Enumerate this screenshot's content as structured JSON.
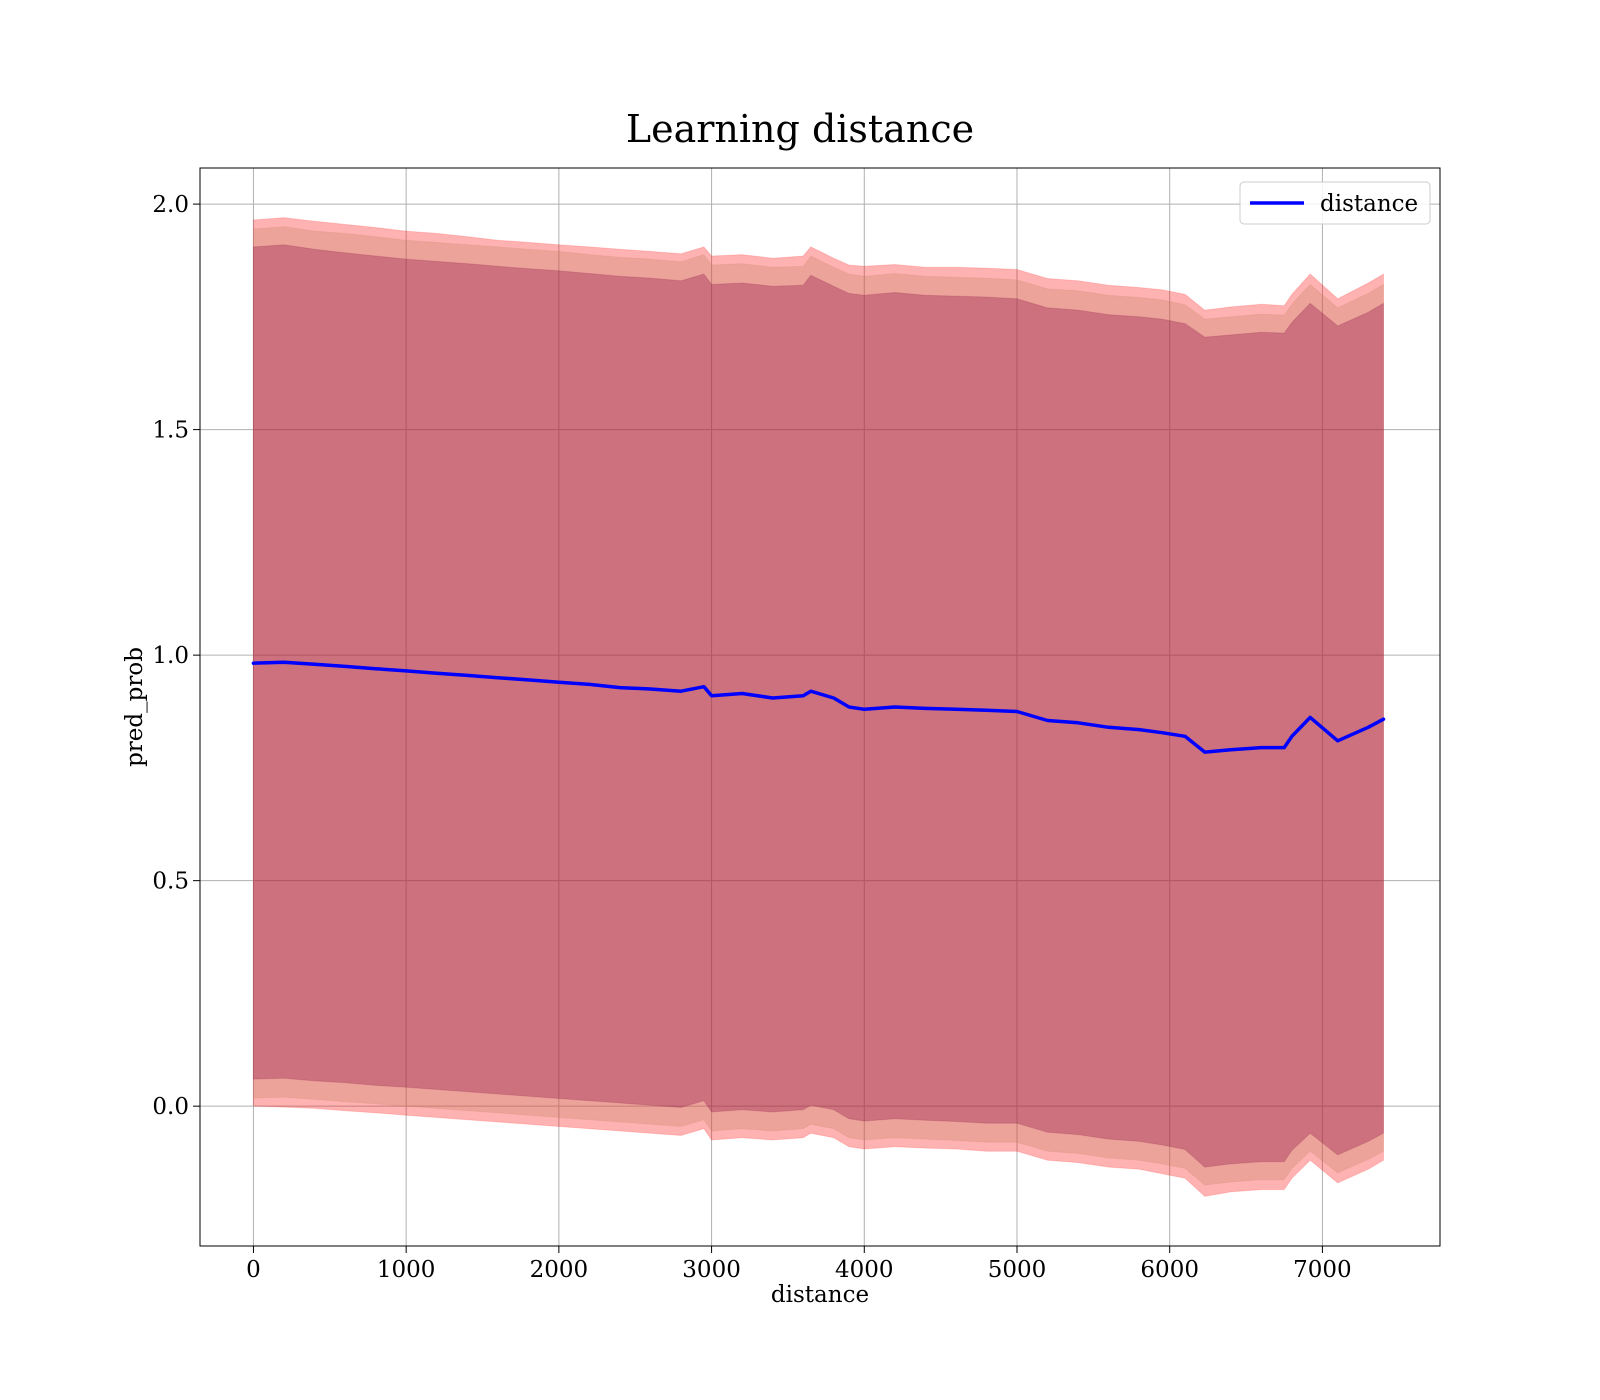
{
  "chart_data": {
    "type": "line",
    "title": "Learning distance",
    "xlabel": "distance",
    "ylabel": "pred_prob",
    "xlim": [
      -350,
      7770
    ],
    "ylim": [
      -0.31,
      2.08
    ],
    "xticks": [
      0,
      1000,
      2000,
      3000,
      4000,
      5000,
      6000,
      7000
    ],
    "xtick_labels": [
      "0",
      "1000",
      "2000",
      "3000",
      "4000",
      "5000",
      "6000",
      "7000"
    ],
    "yticks": [
      0.0,
      0.5,
      1.0,
      1.5,
      2.0
    ],
    "ytick_labels": [
      "0.0",
      "0.5",
      "1.0",
      "1.5",
      "2.0"
    ],
    "grid": true,
    "legend": {
      "position": "top-right",
      "entries": [
        "distance"
      ]
    },
    "x": [
      0,
      200,
      400,
      600,
      800,
      1000,
      1200,
      1400,
      1600,
      1800,
      2000,
      2200,
      2400,
      2600,
      2800,
      2950,
      3000,
      3200,
      3400,
      3600,
      3650,
      3800,
      3900,
      4000,
      4200,
      4400,
      4600,
      4800,
      5000,
      5200,
      5400,
      5600,
      5800,
      5950,
      6100,
      6230,
      6400,
      6600,
      6750,
      6800,
      6920,
      7100,
      7300,
      7400
    ],
    "series": [
      {
        "name": "distance",
        "color": "#0000ff",
        "values": [
          0.982,
          0.984,
          0.98,
          0.975,
          0.97,
          0.965,
          0.96,
          0.955,
          0.95,
          0.945,
          0.94,
          0.935,
          0.928,
          0.925,
          0.92,
          0.93,
          0.91,
          0.915,
          0.905,
          0.91,
          0.92,
          0.905,
          0.885,
          0.88,
          0.885,
          0.882,
          0.88,
          0.878,
          0.875,
          0.855,
          0.85,
          0.84,
          0.835,
          0.828,
          0.82,
          0.785,
          0.79,
          0.795,
          0.795,
          0.82,
          0.862,
          0.81,
          0.84,
          0.858
        ]
      }
    ],
    "bands": [
      {
        "name": "band-outer",
        "color": "#ff0000",
        "upper": [
          1.965,
          1.97,
          1.962,
          1.955,
          1.948,
          1.94,
          1.935,
          1.928,
          1.92,
          1.915,
          1.91,
          1.905,
          1.9,
          1.895,
          1.89,
          1.905,
          1.885,
          1.888,
          1.88,
          1.885,
          1.905,
          1.88,
          1.865,
          1.862,
          1.866,
          1.86,
          1.86,
          1.858,
          1.855,
          1.835,
          1.83,
          1.82,
          1.815,
          1.81,
          1.8,
          1.765,
          1.772,
          1.778,
          1.775,
          1.8,
          1.845,
          1.79,
          1.825,
          1.845
        ],
        "lower": [
          0.0,
          -0.002,
          -0.005,
          -0.01,
          -0.015,
          -0.02,
          -0.025,
          -0.03,
          -0.035,
          -0.04,
          -0.045,
          -0.05,
          -0.055,
          -0.06,
          -0.065,
          -0.05,
          -0.075,
          -0.07,
          -0.075,
          -0.07,
          -0.06,
          -0.07,
          -0.09,
          -0.095,
          -0.09,
          -0.093,
          -0.095,
          -0.1,
          -0.1,
          -0.12,
          -0.125,
          -0.135,
          -0.14,
          -0.15,
          -0.16,
          -0.2,
          -0.19,
          -0.185,
          -0.185,
          -0.16,
          -0.12,
          -0.17,
          -0.14,
          -0.12
        ]
      },
      {
        "name": "band-middle",
        "color": "#c08060",
        "upper": [
          1.945,
          1.95,
          1.94,
          1.935,
          1.928,
          1.92,
          1.915,
          1.91,
          1.905,
          1.9,
          1.895,
          1.888,
          1.882,
          1.878,
          1.872,
          1.888,
          1.865,
          1.868,
          1.86,
          1.862,
          1.885,
          1.86,
          1.845,
          1.84,
          1.846,
          1.84,
          1.838,
          1.836,
          1.832,
          1.812,
          1.808,
          1.798,
          1.793,
          1.788,
          1.777,
          1.745,
          1.75,
          1.756,
          1.754,
          1.778,
          1.822,
          1.77,
          1.802,
          1.822
        ],
        "lower": [
          0.018,
          0.02,
          0.015,
          0.01,
          0.005,
          0.0,
          -0.005,
          -0.01,
          -0.015,
          -0.02,
          -0.025,
          -0.03,
          -0.035,
          -0.04,
          -0.045,
          -0.03,
          -0.055,
          -0.05,
          -0.055,
          -0.05,
          -0.04,
          -0.05,
          -0.07,
          -0.075,
          -0.07,
          -0.073,
          -0.076,
          -0.08,
          -0.08,
          -0.1,
          -0.105,
          -0.115,
          -0.12,
          -0.128,
          -0.138,
          -0.175,
          -0.168,
          -0.163,
          -0.163,
          -0.138,
          -0.1,
          -0.148,
          -0.118,
          -0.1
        ]
      },
      {
        "name": "band-inner",
        "color": "#800040",
        "upper": [
          1.905,
          1.91,
          1.9,
          1.892,
          1.885,
          1.878,
          1.873,
          1.868,
          1.862,
          1.857,
          1.852,
          1.846,
          1.84,
          1.836,
          1.83,
          1.845,
          1.822,
          1.825,
          1.818,
          1.82,
          1.842,
          1.818,
          1.802,
          1.798,
          1.804,
          1.798,
          1.796,
          1.794,
          1.79,
          1.77,
          1.765,
          1.755,
          1.75,
          1.745,
          1.735,
          1.705,
          1.71,
          1.716,
          1.714,
          1.738,
          1.78,
          1.73,
          1.76,
          1.78
        ],
        "lower": [
          0.06,
          0.062,
          0.056,
          0.052,
          0.046,
          0.042,
          0.037,
          0.032,
          0.027,
          0.022,
          0.017,
          0.012,
          0.007,
          0.002,
          -0.003,
          0.012,
          -0.013,
          -0.008,
          -0.013,
          -0.008,
          0.002,
          -0.008,
          -0.028,
          -0.033,
          -0.028,
          -0.031,
          -0.034,
          -0.038,
          -0.038,
          -0.058,
          -0.063,
          -0.073,
          -0.078,
          -0.086,
          -0.096,
          -0.135,
          -0.128,
          -0.123,
          -0.123,
          -0.098,
          -0.06,
          -0.108,
          -0.078,
          -0.06
        ]
      }
    ]
  }
}
